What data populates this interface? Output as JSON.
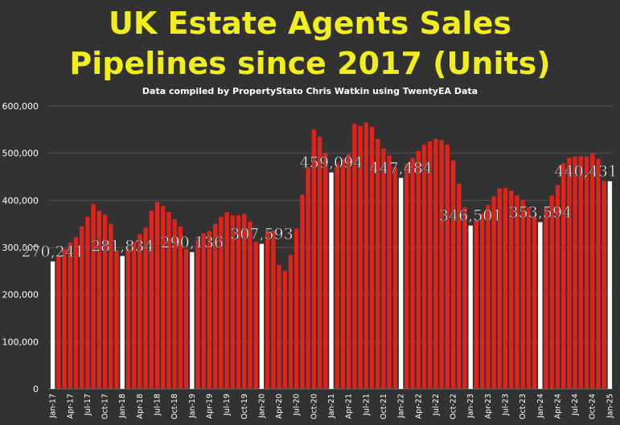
{
  "title_line_1": "UK Estate Agents Sales",
  "title_line_2": "Pipelines since 2017 (Units)",
  "subtitle": "Data compiled by PropertyStato Chris Watkin using TwentyEA Data",
  "colors": {
    "background": "#323232",
    "title": "#f2ee1c",
    "bar_monthly": "#e0241b",
    "bar_january": "#ffffff",
    "gridline": "#555555",
    "text": "#ffffff"
  },
  "chart_data": {
    "type": "bar",
    "title": "UK Estate Agents Sales Pipelines since 2017 (Units)",
    "ylim": [
      0,
      600000
    ],
    "yticks": [
      "0",
      "100,000",
      "200,000",
      "300,000",
      "400,000",
      "500,000",
      "600,000"
    ],
    "grid": true,
    "legend": "none",
    "x_tick_labels": [
      "Jan-17",
      "Apr-17",
      "Jul-17",
      "Oct-17",
      "Jan-18",
      "Apr-18",
      "Jul-18",
      "Oct-18",
      "Jan-19",
      "Apr-19",
      "Jul-19",
      "Oct-19",
      "Jan-20",
      "Apr-20",
      "Jul-20",
      "Oct-20",
      "Jan-21",
      "Apr-21",
      "Jul-21",
      "Oct-21",
      "Jan-22",
      "Apr-22",
      "Jul-22",
      "Oct-22",
      "Jan-23",
      "Apr-23",
      "Jul-23",
      "Oct-23",
      "Jan-24",
      "Apr-24",
      "Jul-24",
      "Oct-24",
      "Jan-25"
    ],
    "values": [
      270241,
      282000,
      297000,
      310000,
      322000,
      345000,
      365000,
      392000,
      378000,
      370000,
      350000,
      295000,
      281834,
      297000,
      312000,
      328000,
      342000,
      378000,
      397000,
      388000,
      375000,
      360000,
      345000,
      297000,
      290136,
      316000,
      330000,
      335000,
      350000,
      365000,
      375000,
      368000,
      368000,
      371000,
      355000,
      312000,
      307593,
      336000,
      336000,
      263000,
      250000,
      284000,
      340000,
      412000,
      470000,
      550000,
      535000,
      500000,
      459094,
      478000,
      488000,
      498000,
      562000,
      558000,
      565000,
      556000,
      530000,
      510000,
      495000,
      470000,
      447484,
      478000,
      490000,
      505000,
      518000,
      525000,
      530000,
      528000,
      518000,
      485000,
      435000,
      385000,
      346501,
      358000,
      372000,
      390000,
      408000,
      425000,
      426000,
      420000,
      410000,
      400000,
      385000,
      365000,
      353594,
      385000,
      410000,
      432000,
      478000,
      490000,
      493000,
      494000,
      493000,
      500000,
      488000,
      441000,
      440431
    ],
    "labeled_points": [
      {
        "label": "270,241",
        "index": 0
      },
      {
        "label": "281,834",
        "index": 12
      },
      {
        "label": "290,136",
        "index": 24
      },
      {
        "label": "307,593",
        "index": 36
      },
      {
        "label": "459,094",
        "index": 48
      },
      {
        "label": "447,484",
        "index": 60
      },
      {
        "label": "346,501",
        "index": 72
      },
      {
        "label": "353,594",
        "index": 84
      },
      {
        "label": "440,431",
        "index": 96
      }
    ]
  }
}
